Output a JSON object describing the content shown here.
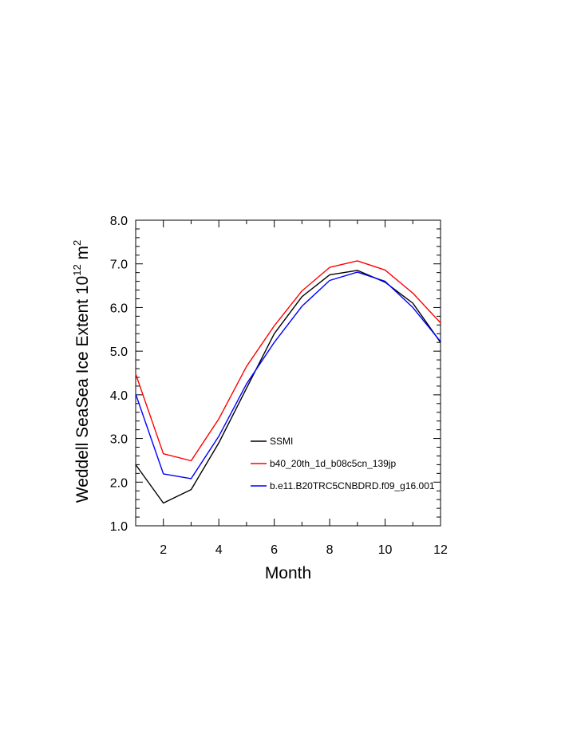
{
  "chart_data": {
    "type": "line",
    "xlabel": "Month",
    "ylabel": "Weddell SeaSea Ice Extent 10",
    "ylabel_sup1": "12",
    "ylabel_unit": " m",
    "ylabel_sup2": "2",
    "xlim": [
      1,
      12
    ],
    "ylim": [
      1.0,
      8.0
    ],
    "x_ticks": [
      2,
      4,
      6,
      8,
      10,
      12
    ],
    "x_tick_labels": [
      "2",
      "4",
      "6",
      "8",
      "10",
      "12"
    ],
    "y_ticks": [
      1.0,
      2.0,
      3.0,
      4.0,
      5.0,
      6.0,
      7.0,
      8.0
    ],
    "y_tick_labels": [
      "1.0",
      "2.0",
      "3.0",
      "4.0",
      "5.0",
      "6.0",
      "7.0",
      "8.0"
    ],
    "grid": false,
    "legend_position": "lower-right",
    "x": [
      1,
      2,
      3,
      4,
      5,
      6,
      7,
      8,
      9,
      10,
      11,
      12
    ],
    "series": [
      {
        "name": "SSMI",
        "color": "#000000",
        "values": [
          2.4,
          1.52,
          1.83,
          2.9,
          4.15,
          5.4,
          6.25,
          6.75,
          6.85,
          6.58,
          6.1,
          5.2
        ]
      },
      {
        "name": "b40_20th_1d_b08c5cn_139jp",
        "color": "#ff0000",
        "values": [
          4.48,
          2.65,
          2.49,
          3.45,
          4.65,
          5.58,
          6.38,
          6.92,
          7.07,
          6.86,
          6.33,
          5.65
        ]
      },
      {
        "name": "b.e11.B20TRC5CNBDRD.f09_g16.001",
        "color": "#0000ff",
        "values": [
          4.02,
          2.19,
          2.08,
          3.05,
          4.25,
          5.2,
          6.03,
          6.62,
          6.81,
          6.6,
          6.0,
          5.22
        ]
      }
    ]
  }
}
